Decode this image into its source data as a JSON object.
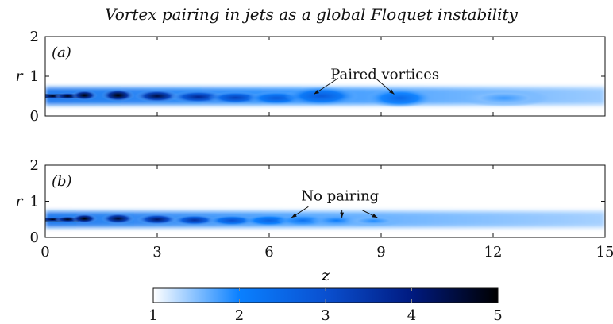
{
  "title": "Vortex pairing in jets as a global Floquet instability",
  "chart_data": [
    {
      "type": "heatmap",
      "panel_label": "(a)",
      "xlabel": "",
      "ylabel": "r",
      "xlim": [
        0,
        15
      ],
      "ylim": [
        0,
        2
      ],
      "yticks": [
        "0",
        "1",
        "2"
      ],
      "grid": false,
      "vortices": [
        {
          "z": 0.2,
          "r": 0.5,
          "w": 0.3,
          "h": 0.06,
          "v": 5.0
        },
        {
          "z": 0.6,
          "r": 0.5,
          "w": 0.35,
          "h": 0.09,
          "v": 4.8
        },
        {
          "z": 1.05,
          "r": 0.52,
          "w": 0.35,
          "h": 0.13,
          "v": 5.0
        },
        {
          "z": 1.95,
          "r": 0.52,
          "w": 0.45,
          "h": 0.16,
          "v": 5.0
        },
        {
          "z": 3.0,
          "r": 0.5,
          "w": 0.6,
          "h": 0.16,
          "v": 4.5
        },
        {
          "z": 4.1,
          "r": 0.48,
          "w": 0.75,
          "h": 0.16,
          "v": 3.8
        },
        {
          "z": 5.1,
          "r": 0.46,
          "w": 0.75,
          "h": 0.16,
          "v": 3.3
        },
        {
          "z": 6.2,
          "r": 0.45,
          "w": 0.8,
          "h": 0.17,
          "v": 2.8
        },
        {
          "z": 7.4,
          "r": 0.5,
          "w": 1.0,
          "h": 0.24,
          "v": 2.8
        },
        {
          "z": 9.5,
          "r": 0.45,
          "w": 0.9,
          "h": 0.24,
          "v": 2.5
        },
        {
          "z": 12.3,
          "r": 0.45,
          "w": 1.2,
          "h": 0.22,
          "v": 1.8
        }
      ],
      "annotations": [
        {
          "text": "Paired vortices",
          "z": 9.1,
          "r": 1.05
        },
        {
          "arrow_from": [
            7.85,
            0.95
          ],
          "arrow_to": [
            7.2,
            0.55
          ]
        },
        {
          "arrow_from": [
            8.85,
            0.95
          ],
          "arrow_to": [
            9.35,
            0.55
          ]
        }
      ]
    },
    {
      "type": "heatmap",
      "panel_label": "(b)",
      "xlabel": "z",
      "ylabel": "r",
      "xlim": [
        0,
        15
      ],
      "ylim": [
        0,
        2
      ],
      "xticks": [
        "0",
        "3",
        "6",
        "9",
        "12",
        "15"
      ],
      "yticks": [
        "0",
        "1",
        "2"
      ],
      "grid": false,
      "vortices": [
        {
          "z": 0.2,
          "r": 0.5,
          "w": 0.3,
          "h": 0.06,
          "v": 5.0
        },
        {
          "z": 0.6,
          "r": 0.5,
          "w": 0.35,
          "h": 0.09,
          "v": 4.8
        },
        {
          "z": 1.05,
          "r": 0.52,
          "w": 0.35,
          "h": 0.13,
          "v": 5.0
        },
        {
          "z": 1.95,
          "r": 0.52,
          "w": 0.45,
          "h": 0.15,
          "v": 4.6
        },
        {
          "z": 3.0,
          "r": 0.5,
          "w": 0.55,
          "h": 0.15,
          "v": 4.2
        },
        {
          "z": 4.0,
          "r": 0.48,
          "w": 0.6,
          "h": 0.15,
          "v": 3.6
        },
        {
          "z": 5.0,
          "r": 0.47,
          "w": 0.65,
          "h": 0.15,
          "v": 3.0
        },
        {
          "z": 6.0,
          "r": 0.47,
          "w": 0.7,
          "h": 0.16,
          "v": 2.6
        },
        {
          "z": 6.9,
          "r": 0.47,
          "w": 0.7,
          "h": 0.16,
          "v": 2.3
        },
        {
          "z": 7.8,
          "r": 0.47,
          "w": 0.7,
          "h": 0.16,
          "v": 2.1
        },
        {
          "z": 8.8,
          "r": 0.46,
          "w": 0.8,
          "h": 0.16,
          "v": 1.9
        }
      ],
      "annotations": [
        {
          "text": "No pairing",
          "z": 7.9,
          "r": 1.15
        },
        {
          "arrow_from": [
            7.05,
            0.85
          ],
          "arrow_to": [
            6.6,
            0.55
          ]
        },
        {
          "arrow_from": [
            7.95,
            0.75
          ],
          "arrow_to": [
            7.95,
            0.55
          ]
        },
        {
          "arrow_from": [
            8.5,
            0.75
          ],
          "arrow_to": [
            8.9,
            0.55
          ]
        }
      ]
    },
    {
      "type": "colorbar",
      "vlim": [
        1,
        5
      ],
      "ticks": [
        "1",
        "2",
        "3",
        "4",
        "5"
      ],
      "colors": [
        "#ffffff",
        "#0a80ff",
        "#0a50d0",
        "#001a80",
        "#000000"
      ]
    }
  ]
}
